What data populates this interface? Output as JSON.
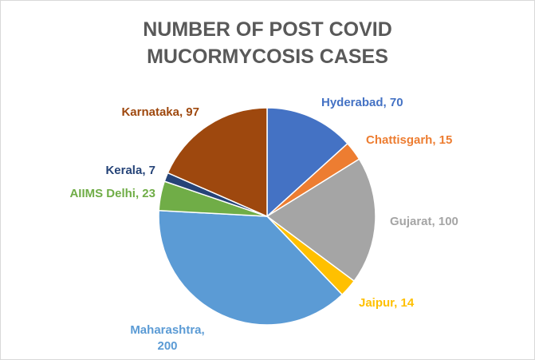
{
  "chart_data": {
    "type": "pie",
    "title_lines": [
      "NUMBER OF POST COVID",
      "MUCORMYCOSIS CASES"
    ],
    "slices": [
      {
        "label": "Hyderabad, 70",
        "value": 70,
        "color": "#4472C4"
      },
      {
        "label": "Chattisgarh, 15",
        "value": 15,
        "color": "#ED7D31"
      },
      {
        "label": "Gujarat, 100",
        "value": 100,
        "color": "#A5A5A5"
      },
      {
        "label": "Jaipur, 14",
        "value": 14,
        "color": "#FFC000"
      },
      {
        "label": "Maharashtra, 200",
        "value": 200,
        "color": "#5B9BD5",
        "label_lines": [
          "Maharashtra,",
          "200"
        ]
      },
      {
        "label": "AIIMS Delhi, 23",
        "value": 23,
        "color": "#70AD47"
      },
      {
        "label": "Kerala, 7",
        "value": 7,
        "color": "#264478"
      },
      {
        "label": "Karnataka, 97",
        "value": 97,
        "color": "#9E480E"
      }
    ]
  }
}
